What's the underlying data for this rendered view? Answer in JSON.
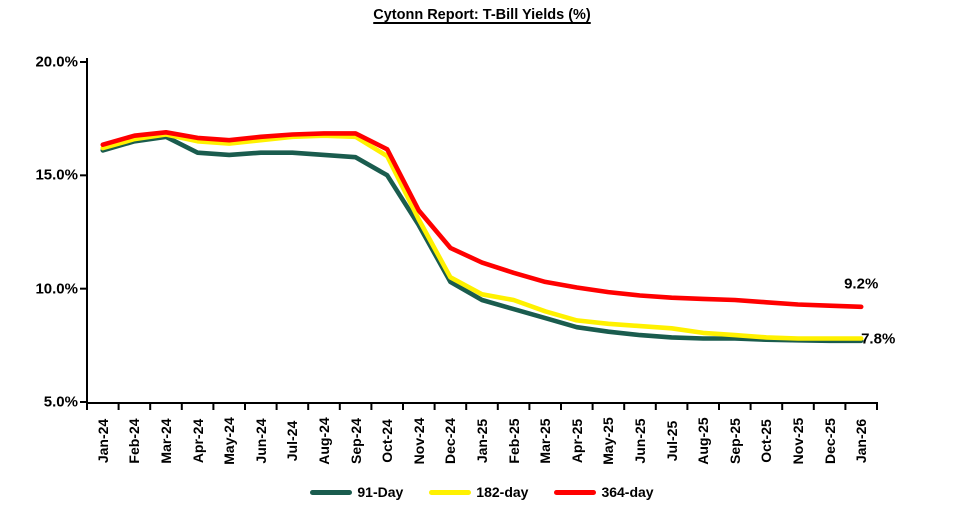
{
  "chart_data": {
    "type": "line",
    "title": "Cytonn Report: T-Bill Yields (%)",
    "categories": [
      "Jan-24",
      "Feb-24",
      "Mar-24",
      "Apr-24",
      "May-24",
      "Jun-24",
      "Jul-24",
      "Aug-24",
      "Sep-24",
      "Oct-24",
      "Nov-24",
      "Dec-24",
      "Jan-25",
      "Feb-25",
      "Mar-25",
      "Apr-25",
      "May-25",
      "Jun-25",
      "Jul-25",
      "Aug-25",
      "Sep-25",
      "Oct-25",
      "Nov-25",
      "Dec-25",
      "Jan-26"
    ],
    "series": [
      {
        "name": "91-Day",
        "color": "#1A5C4E",
        "values": [
          16.1,
          16.5,
          16.7,
          16.0,
          15.9,
          16.0,
          16.0,
          15.9,
          15.8,
          15.0,
          12.8,
          10.3,
          9.5,
          9.1,
          8.7,
          8.3,
          8.1,
          7.95,
          7.85,
          7.8,
          7.8,
          7.75,
          7.72,
          7.7,
          7.7
        ]
      },
      {
        "name": "182-day",
        "color": "#FFF100",
        "values": [
          16.2,
          16.6,
          16.8,
          16.5,
          16.4,
          16.55,
          16.7,
          16.75,
          16.7,
          15.85,
          13.05,
          10.5,
          9.75,
          9.5,
          9.0,
          8.6,
          8.45,
          8.35,
          8.25,
          8.05,
          7.95,
          7.85,
          7.8,
          7.8,
          7.8
        ]
      },
      {
        "name": "364-day",
        "color": "#FF0000",
        "values": [
          16.35,
          16.75,
          16.9,
          16.65,
          16.55,
          16.7,
          16.8,
          16.85,
          16.85,
          16.15,
          13.45,
          11.8,
          11.15,
          10.7,
          10.3,
          10.05,
          9.85,
          9.7,
          9.6,
          9.55,
          9.5,
          9.4,
          9.3,
          9.25,
          9.2
        ]
      }
    ],
    "y_axis": {
      "min": 5,
      "max": 20,
      "tick_values": [
        5,
        10,
        15,
        20
      ],
      "tick_labels": [
        "5.0%",
        "10.0%",
        "15.0%",
        "20.0%"
      ]
    },
    "x_axis": {
      "label_rotation_deg": 90
    },
    "grid": false,
    "legend_position": "bottom",
    "annotations": [
      {
        "text": "9.2%",
        "series": "364-day",
        "placement": "above-line-end"
      },
      {
        "text": "7.8%",
        "series": "182-day",
        "placement": "at-line-end"
      }
    ]
  }
}
